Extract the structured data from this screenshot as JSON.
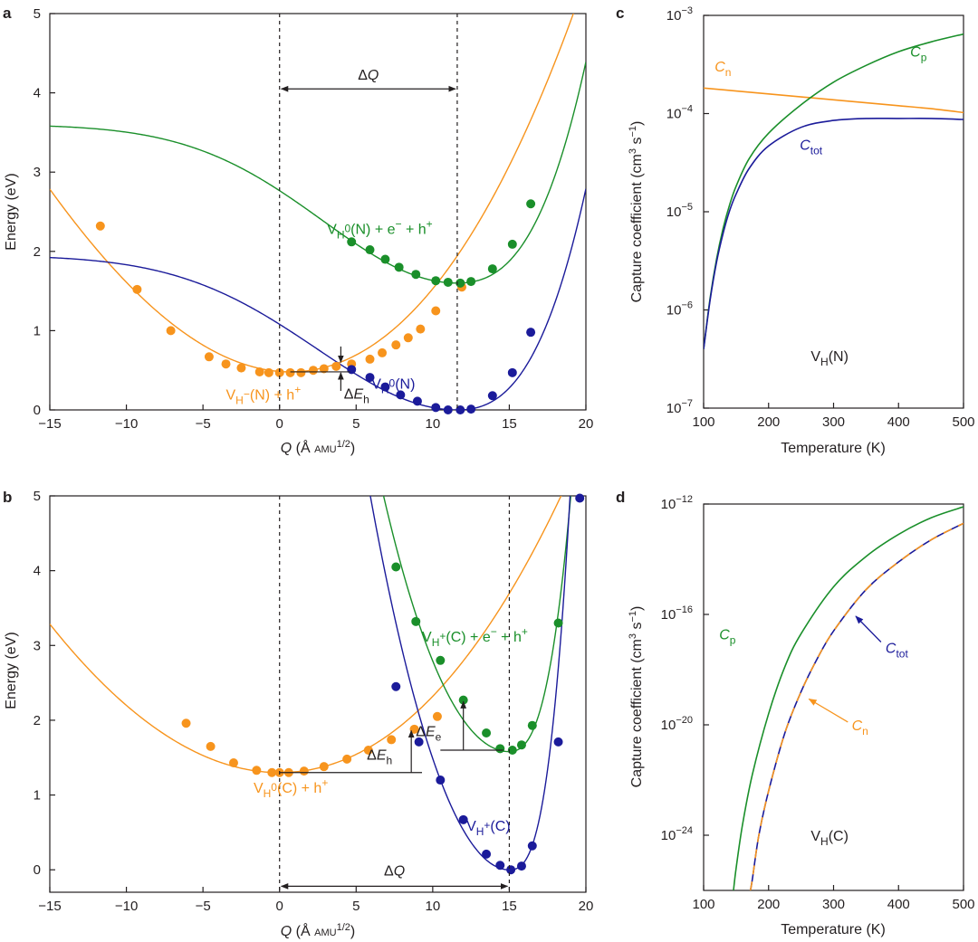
{
  "colors": {
    "orange": "#f7941d",
    "green": "#1a8f2a",
    "blue": "#1b1b9a",
    "black": "#231f20"
  },
  "chart_data": [
    {
      "panel": "a",
      "type": "line",
      "xlabel": "Q (Å AMU1/2)",
      "xlabel_parts": {
        "q": "Q",
        "unit": " (Å ",
        "amu": "AMU",
        "exp": "1/2",
        "close": ")"
      },
      "ylabel": "Energy (eV)",
      "xlim": [
        -15,
        20
      ],
      "ylim": [
        0,
        5
      ],
      "xticks": [
        -15,
        -10,
        -5,
        0,
        5,
        10,
        15,
        20
      ],
      "xtick_labels": [
        "−15",
        "−10",
        "−5",
        "0",
        "5",
        "10",
        "15",
        "20"
      ],
      "yticks": [
        0,
        1,
        2,
        3,
        4,
        5
      ],
      "ytick_labels": [
        "0",
        "1",
        "2",
        "3",
        "4",
        "5"
      ],
      "series": [
        {
          "name": "VH−(N) + h+",
          "color": "orange",
          "fit": {
            "vertex_q": 0.7,
            "vertex_e": 0.48,
            "a": 0.011,
            "b": 0.000105
          },
          "points": [
            [
              -11.7,
              2.32
            ],
            [
              -9.3,
              1.52
            ],
            [
              -7.1,
              1.0
            ],
            [
              -4.6,
              0.67
            ],
            [
              -3.5,
              0.58
            ],
            [
              -2.5,
              0.53
            ],
            [
              -1.3,
              0.48
            ],
            [
              -0.7,
              0.47
            ],
            [
              0.0,
              0.47
            ],
            [
              0.7,
              0.47
            ],
            [
              1.4,
              0.47
            ],
            [
              2.2,
              0.5
            ],
            [
              2.9,
              0.52
            ],
            [
              3.7,
              0.55
            ],
            [
              4.7,
              0.58
            ],
            [
              5.9,
              0.64
            ],
            [
              6.7,
              0.72
            ],
            [
              7.6,
              0.82
            ],
            [
              8.4,
              0.91
            ],
            [
              9.2,
              1.02
            ],
            [
              10.2,
              1.25
            ],
            [
              11.9,
              1.55
            ]
          ]
        },
        {
          "name": "VH0(N) + e− + h+",
          "color": "green",
          "fit": {
            "vertex_q": 11.6,
            "vertex_e": 1.6
          },
          "points": [
            [
              4.7,
              2.12
            ],
            [
              5.9,
              2.02
            ],
            [
              6.9,
              1.9
            ],
            [
              7.8,
              1.8
            ],
            [
              8.9,
              1.71
            ],
            [
              10.2,
              1.63
            ],
            [
              11.0,
              1.61
            ],
            [
              11.8,
              1.6
            ],
            [
              12.5,
              1.62
            ],
            [
              13.9,
              1.78
            ],
            [
              15.2,
              2.09
            ],
            [
              16.4,
              2.6
            ]
          ]
        },
        {
          "name": "VH0(N)",
          "color": "blue",
          "fit": {
            "vertex_q": 11.6,
            "vertex_e": 0.0
          },
          "points": [
            [
              4.7,
              0.51
            ],
            [
              5.9,
              0.41
            ],
            [
              6.9,
              0.29
            ],
            [
              7.9,
              0.19
            ],
            [
              9.0,
              0.11
            ],
            [
              10.2,
              0.03
            ],
            [
              11.0,
              0.0
            ],
            [
              11.8,
              0.0
            ],
            [
              12.5,
              0.01
            ],
            [
              13.9,
              0.18
            ],
            [
              15.2,
              0.47
            ],
            [
              16.4,
              0.98
            ]
          ]
        }
      ],
      "labels": {
        "series_orange": {
          "base": "V",
          "sub": "H",
          "sup": "−",
          "rest": "(N) + h",
          "sup2": "+"
        },
        "series_green": {
          "base": "V",
          "sub": "H",
          "sup": "0",
          "rest": "(N) + e",
          "sup2": "−",
          "rest2": " + h",
          "sup3": "+"
        },
        "series_blue": {
          "base": "V",
          "sub": "H",
          "sup": "0",
          "rest": "(N)"
        },
        "delta_q": "ΔQ",
        "delta_eh": {
          "prefix": "Δ",
          "var": "E",
          "sub": "h"
        }
      },
      "annotations": {
        "vlines_q": [
          0,
          11.6
        ],
        "delta_q_arrow_e": 4.05,
        "delta_eh_q": 4.0,
        "delta_eh_range": [
          0.48,
          0.59
        ]
      }
    },
    {
      "panel": "b",
      "type": "line",
      "xlabel": "Q (Å AMU1/2)",
      "ylabel": "Energy (eV)",
      "xlim": [
        -15,
        20
      ],
      "ylim": [
        -0.3,
        5
      ],
      "xticks": [
        -15,
        -10,
        -5,
        0,
        5,
        10,
        15,
        20
      ],
      "xtick_labels": [
        "−15",
        "−10",
        "−5",
        "0",
        "5",
        "10",
        "15",
        "20"
      ],
      "yticks": [
        0,
        1,
        2,
        3,
        4,
        5
      ],
      "ytick_labels": [
        "0",
        "1",
        "2",
        "3",
        "4",
        "5"
      ],
      "series": [
        {
          "name": "VH0(C) + h+",
          "color": "orange",
          "fit": {
            "vertex_q": 0.0,
            "vertex_e": 1.3,
            "k": 0.0093
          },
          "points": [
            [
              -6.1,
              1.96
            ],
            [
              -4.5,
              1.65
            ],
            [
              -3.0,
              1.43
            ],
            [
              -1.5,
              1.33
            ],
            [
              -0.5,
              1.3
            ],
            [
              0.0,
              1.3
            ],
            [
              0.6,
              1.3
            ],
            [
              1.6,
              1.32
            ],
            [
              2.9,
              1.38
            ],
            [
              4.4,
              1.48
            ],
            [
              5.8,
              1.6
            ],
            [
              7.3,
              1.74
            ],
            [
              8.8,
              1.88
            ],
            [
              10.3,
              2.05
            ]
          ]
        },
        {
          "name": "VH+(C) + e− + h+",
          "color": "green",
          "fit": {
            "vertex_q": 15.0,
            "vertex_e": 1.58,
            "k": 0.045
          },
          "points": [
            [
              7.6,
              4.05
            ],
            [
              8.9,
              3.32
            ],
            [
              10.5,
              2.8
            ],
            [
              12.0,
              2.27
            ],
            [
              13.5,
              1.83
            ],
            [
              14.4,
              1.62
            ],
            [
              15.2,
              1.6
            ],
            [
              15.8,
              1.67
            ],
            [
              16.5,
              1.93
            ],
            [
              18.2,
              3.3
            ]
          ]
        },
        {
          "name": "VH+(C)",
          "color": "blue",
          "fit": {
            "vertex_q": 15.0,
            "vertex_e": 0.0,
            "k": 0.058
          },
          "points": [
            [
              7.6,
              2.45
            ],
            [
              9.1,
              1.71
            ],
            [
              10.5,
              1.2
            ],
            [
              12.0,
              0.67
            ],
            [
              13.5,
              0.21
            ],
            [
              14.4,
              0.06
            ],
            [
              15.1,
              0.0
            ],
            [
              15.8,
              0.05
            ],
            [
              16.5,
              0.32
            ],
            [
              18.2,
              1.71
            ],
            [
              19.6,
              4.97
            ]
          ]
        }
      ],
      "labels": {
        "series_orange": {
          "base": "V",
          "sub": "H",
          "sup": "0",
          "rest": "(C) + h",
          "sup2": "+"
        },
        "series_green": {
          "base": "V",
          "sub": "H",
          "sup": "+",
          "rest": "(C) + e",
          "sup2": "−",
          "rest2": " + h",
          "sup3": "+"
        },
        "series_blue": {
          "base": "V",
          "sub": "H",
          "sup": "+",
          "rest": "(C)"
        },
        "delta_q": "ΔQ",
        "delta_eh": {
          "prefix": "Δ",
          "var": "E",
          "sub": "h"
        },
        "delta_ee": {
          "prefix": "Δ",
          "var": "E",
          "sub": "e"
        }
      },
      "annotations": {
        "vlines_q": [
          0,
          15
        ],
        "delta_q_arrow_e": -0.22,
        "delta_eh_q": 8.6,
        "delta_eh_range": [
          1.3,
          1.88
        ],
        "delta_ee_q": 12.0,
        "delta_ee_range": [
          1.6,
          2.27
        ]
      }
    },
    {
      "panel": "c",
      "type": "line",
      "xlabel": "Temperature (K)",
      "ylabel": "Capture coefficient (cm3 s−1)",
      "ylabel_parts": {
        "main": "Capture coefficient (cm",
        "exp1": "3",
        "mid": " s",
        "exp2": "−1",
        "close": ")"
      },
      "xscale": "linear",
      "yscale": "log",
      "xlim": [
        100,
        500
      ],
      "ylim_log10": [
        -7,
        -3
      ],
      "xticks": [
        100,
        200,
        300,
        400,
        500
      ],
      "xtick_labels": [
        "100",
        "200",
        "300",
        "400",
        "500"
      ],
      "yticks_log10": [
        -7,
        -6,
        -5,
        -4,
        -3
      ],
      "ytick_labels": [
        "-7",
        "-6",
        "-5",
        "-4",
        "-3"
      ],
      "tick_base": "10",
      "series": [
        {
          "name": "Cn",
          "color": "orange",
          "x": [
            100,
            150,
            200,
            250,
            300,
            350,
            400,
            450,
            500
          ],
          "log10_y": [
            -3.74,
            -3.77,
            -3.8,
            -3.83,
            -3.86,
            -3.89,
            -3.92,
            -3.95,
            -3.99
          ]
        },
        {
          "name": "Cp",
          "color": "green",
          "x": [
            100,
            110,
            120,
            130,
            140,
            150,
            170,
            200,
            250,
            300,
            350,
            400,
            450,
            500
          ],
          "log10_y": [
            -6.4,
            -5.88,
            -5.48,
            -5.17,
            -4.93,
            -4.74,
            -4.46,
            -4.2,
            -3.91,
            -3.68,
            -3.51,
            -3.37,
            -3.27,
            -3.19
          ]
        },
        {
          "name": "Ctot",
          "color": "blue",
          "x": [
            100,
            110,
            120,
            130,
            140,
            150,
            170,
            200,
            250,
            300,
            350,
            400,
            450,
            500
          ],
          "log10_y": [
            -6.4,
            -5.9,
            -5.51,
            -5.22,
            -4.99,
            -4.82,
            -4.56,
            -4.33,
            -4.14,
            -4.07,
            -4.05,
            -4.05,
            -4.05,
            -4.06
          ]
        }
      ],
      "labels": {
        "cn": {
          "var": "C",
          "sub": "n"
        },
        "cp": {
          "var": "C",
          "sub": "p"
        },
        "ctot": {
          "var": "C",
          "sub": "tot"
        },
        "defect": {
          "base": "V",
          "sub": "H",
          "rest": "(N)"
        }
      }
    },
    {
      "panel": "d",
      "type": "line",
      "xlabel": "Temperature (K)",
      "ylabel": "Capture coefficient (cm3 s−1)",
      "xscale": "linear",
      "yscale": "log",
      "xlim": [
        100,
        500
      ],
      "ylim_log10": [
        -26,
        -12
      ],
      "xticks": [
        100,
        200,
        300,
        400,
        500
      ],
      "xtick_labels": [
        "100",
        "200",
        "300",
        "400",
        "500"
      ],
      "yticks_log10": [
        -24,
        -20,
        -16,
        -12
      ],
      "ytick_labels": [
        "-24",
        "-20",
        "-16",
        "-12"
      ],
      "tick_base": "10",
      "series": [
        {
          "name": "Cp",
          "color": "green",
          "x": [
            146,
            150,
            160,
            175,
            200,
            225,
            250,
            300,
            350,
            400,
            450,
            500
          ],
          "log10_y": [
            -26.0,
            -25.2,
            -23.6,
            -21.8,
            -19.6,
            -17.9,
            -16.7,
            -15.0,
            -13.9,
            -13.1,
            -12.5,
            -12.1
          ]
        },
        {
          "name": "Cn",
          "color": "orange",
          "dashed": true,
          "x": [
            172,
            175,
            185,
            200,
            225,
            250,
            275,
            300,
            350,
            400,
            450,
            500
          ],
          "log10_y": [
            -26.0,
            -25.6,
            -24.0,
            -22.4,
            -20.3,
            -18.8,
            -17.6,
            -16.6,
            -15.1,
            -14.1,
            -13.3,
            -12.7
          ]
        },
        {
          "name": "Ctot",
          "color": "blue",
          "x": [
            172,
            175,
            185,
            200,
            225,
            250,
            275,
            300,
            350,
            400,
            450,
            500
          ],
          "log10_y": [
            -26.0,
            -25.6,
            -24.0,
            -22.4,
            -20.3,
            -18.8,
            -17.6,
            -16.6,
            -15.1,
            -14.1,
            -13.3,
            -12.7
          ]
        }
      ],
      "labels": {
        "cn": {
          "var": "C",
          "sub": "n"
        },
        "cp": {
          "var": "C",
          "sub": "p"
        },
        "ctot": {
          "var": "C",
          "sub": "tot"
        },
        "defect": {
          "base": "V",
          "sub": "H",
          "rest": "(C)"
        }
      },
      "annotations": {
        "ctot_arrow_target": [
          330,
          -16.0
        ],
        "cn_arrow_target": [
          258,
          -19.0
        ]
      }
    }
  ]
}
